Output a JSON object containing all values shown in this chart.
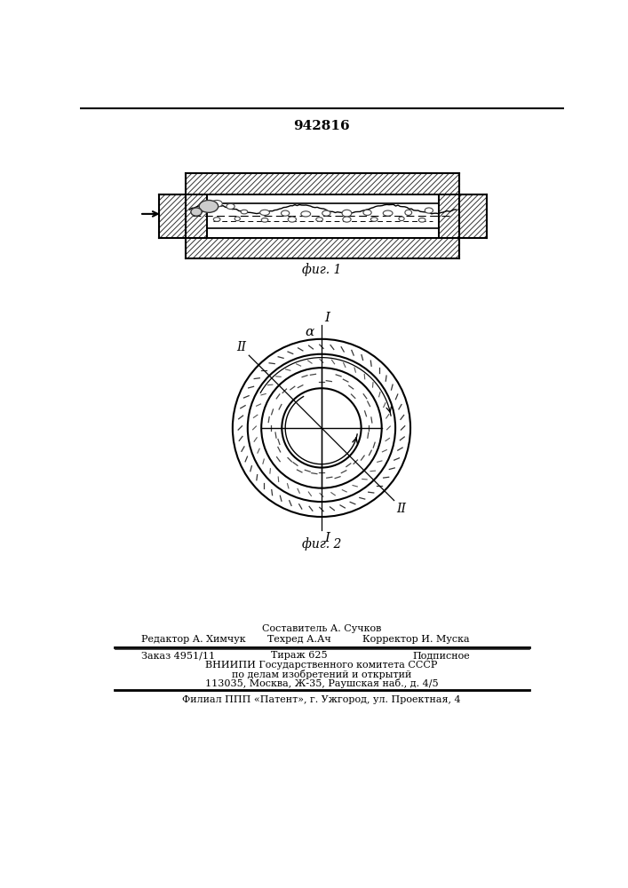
{
  "patent_number": "942816",
  "fig1_label": "фиг. 1",
  "fig2_label": "фиг. 2",
  "footer_line0_center": "Составитель А. Сучков",
  "footer_line1_left": "Редактор А. Химчук",
  "footer_line1_center": "Техред А.Ач",
  "footer_line1_right": "Корректор И. Муска",
  "footer_line2_col1": "Заказ 4951/11",
  "footer_line2_col2": "Тираж 625",
  "footer_line2_col3": "Подписное",
  "footer_line3": "ВНИИПИ Государственного комитета СССР",
  "footer_line4": "по делам изобретений и открытий",
  "footer_line5": "113035, Москва, Ж-35, Раушская наб., д. 4/5",
  "footer_last": "Филиал ППП «Патент», г. Ужгород, ул. Проектная, 4",
  "bg_color": "#ffffff",
  "line_color": "#000000"
}
